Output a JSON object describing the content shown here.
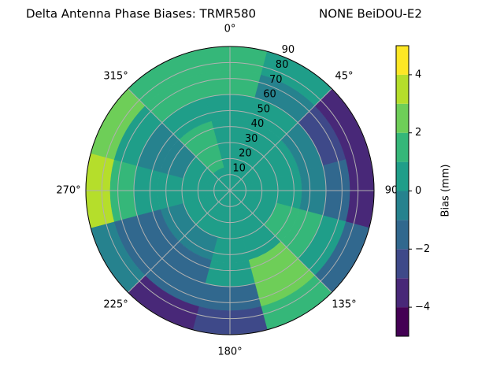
{
  "chart_data": {
    "type": "polar-contour",
    "title": "Delta Antenna Phase Biases: TRMR580",
    "subtitle": "NONE BeiDOU-E2",
    "theta": [
      0,
      30,
      60,
      90,
      120,
      150,
      180,
      210,
      240,
      270,
      300,
      330
    ],
    "r": [
      7.5,
      22.5,
      37.5,
      52.5,
      67.5,
      82.5
    ],
    "values": [
      [
        0.5,
        0.5,
        1,
        1,
        1.5,
        1.5
      ],
      [
        0.5,
        0.5,
        0.5,
        1,
        -0.5,
        0.5
      ],
      [
        0.5,
        0.5,
        0.5,
        -0.5,
        -2,
        -3
      ],
      [
        0.5,
        0.5,
        0.5,
        -0.5,
        -1.5,
        -3.5
      ],
      [
        0.5,
        0.5,
        1.5,
        1.5,
        1,
        -1
      ],
      [
        0.5,
        0.5,
        1,
        2.5,
        2.5,
        1.5
      ],
      [
        0.5,
        0.5,
        0.5,
        0.5,
        -1,
        -2.5
      ],
      [
        0.5,
        0.5,
        -0.5,
        -1.5,
        -1,
        -3
      ],
      [
        0.5,
        0.5,
        -0.5,
        -1,
        -1.5,
        -0.5
      ],
      [
        0.5,
        0.5,
        0.5,
        0.5,
        1.5,
        3.5
      ],
      [
        0.5,
        0.5,
        -0.5,
        -0.5,
        1,
        2.5
      ],
      [
        0.5,
        1.5,
        1.5,
        0.5,
        1.5,
        1.5
      ]
    ],
    "rlim": [
      0,
      90
    ],
    "rticks": [
      10,
      20,
      30,
      40,
      50,
      60,
      70,
      80,
      90
    ],
    "thetaticks": [
      {
        "value": 0,
        "label": "0°"
      },
      {
        "value": 45,
        "label": "45°"
      },
      90,
      {
        "value": 135,
        "label": "135°"
      },
      {
        "value": 180,
        "label": "180°"
      },
      {
        "value": 225,
        "label": "225°"
      },
      {
        "value": 270,
        "label": "270°"
      },
      {
        "value": 315,
        "label": "315°"
      }
    ],
    "grid": true,
    "colorbar": {
      "label": "Bias (mm)",
      "lim": [
        -5,
        5
      ],
      "levels": [
        -5,
        -4,
        -3,
        -2,
        -1,
        0,
        1,
        2,
        3,
        4,
        5
      ],
      "colors": [
        "#440154",
        "#482878",
        "#3e4989",
        "#31688e",
        "#26828e",
        "#1f9e89",
        "#35b779",
        "#6ece58",
        "#b5de2b",
        "#fde725"
      ],
      "ticks": [
        {
          "value": -4,
          "label": "−4"
        },
        {
          "value": -2,
          "label": "−2"
        },
        0,
        2,
        4
      ]
    }
  }
}
